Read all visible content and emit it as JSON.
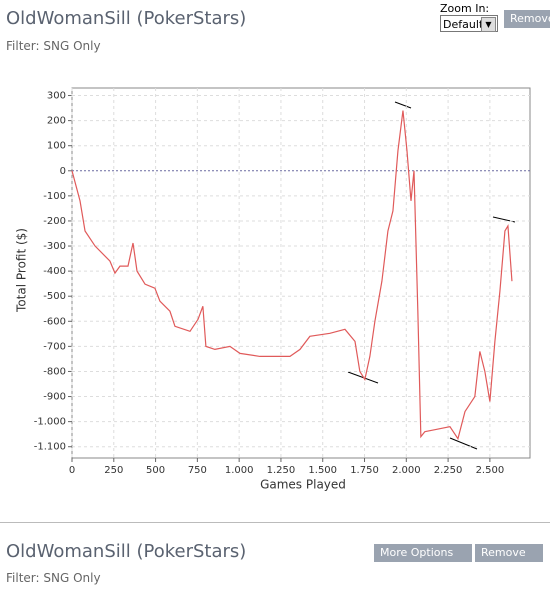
{
  "panel": {
    "title": "OldWomanSill (PokerStars)",
    "filter": "Filter: SNG Only",
    "zoom_label": "Zoom In:",
    "zoom_value": "Default",
    "remove_button": "Remove"
  },
  "chart_data": {
    "type": "line",
    "xlabel": "Games Played",
    "ylabel": "Total Profit ($)",
    "x": [
      0,
      24,
      48,
      78,
      138,
      227,
      257,
      287,
      335,
      365,
      389,
      437,
      496,
      526,
      586,
      616,
      706,
      754,
      783,
      801,
      855,
      945,
      1005,
      1124,
      1304,
      1364,
      1423,
      1543,
      1633,
      1693,
      1722,
      1752,
      1782,
      1812,
      1854,
      1890,
      1920,
      1950,
      1980,
      2004,
      2028,
      2046,
      2069,
      2087,
      2111,
      2171,
      2261,
      2309,
      2351,
      2410,
      2440,
      2470,
      2500,
      2530,
      2560,
      2590,
      2608,
      2632
    ],
    "series": [
      {
        "name": "Total Profit",
        "color": "#e05a5a",
        "values": [
          0,
          -60,
          -120,
          -240,
          -300,
          -360,
          -408,
          -380,
          -380,
          -288,
          -400,
          -452,
          -468,
          -520,
          -560,
          -620,
          -640,
          -592,
          -540,
          -700,
          -712,
          -700,
          -728,
          -740,
          -740,
          -712,
          -660,
          -648,
          -632,
          -680,
          -800,
          -832,
          -740,
          -600,
          -440,
          -240,
          -160,
          80,
          240,
          80,
          -120,
          0,
          -560,
          -1060,
          -1040,
          -1032,
          -1020,
          -1068,
          -960,
          -900,
          -720,
          -800,
          -920,
          -680,
          -480,
          -240,
          -220,
          -440
        ]
      }
    ],
    "xlim": [
      0,
      2740
    ],
    "ylim": [
      -1145,
      330
    ],
    "xticks": [
      0,
      250,
      500,
      750,
      {
        "value": 1000,
        "label": "1.000"
      },
      {
        "value": 1250,
        "label": "1.250"
      },
      {
        "value": 1500,
        "label": "1.500"
      },
      {
        "value": 1750,
        "label": "1.750"
      },
      {
        "value": 2000,
        "label": "2.000"
      },
      {
        "value": 2250,
        "label": "2.250"
      },
      {
        "value": 2500,
        "label": "2.500"
      }
    ],
    "yticks": [
      300,
      200,
      100,
      0,
      -100,
      -200,
      -300,
      -400,
      -500,
      -600,
      -700,
      -800,
      -900,
      {
        "value": -1000,
        "label": "-1.000"
      },
      {
        "value": -1100,
        "label": "-1.100"
      }
    ],
    "grid": true
  },
  "panel2": {
    "title": "OldWomanSill (PokerStars)",
    "filter": "Filter: SNG Only",
    "options_button": "More Options",
    "remove_button": "Remove"
  }
}
